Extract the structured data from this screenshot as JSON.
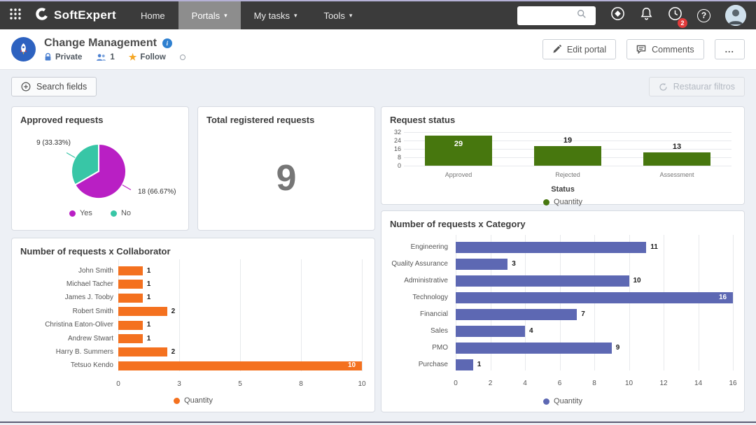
{
  "topnav": {
    "brand": "SoftExpert",
    "menu": [
      {
        "label": "Home",
        "active": false,
        "caret": false
      },
      {
        "label": "Portals",
        "active": true,
        "caret": true
      },
      {
        "label": "My tasks",
        "active": false,
        "caret": true
      },
      {
        "label": "Tools",
        "active": false,
        "caret": true
      }
    ],
    "search_value": "",
    "notifications_badge": "2"
  },
  "header": {
    "title": "Change Management",
    "private_label": "Private",
    "members_count": "1",
    "follow_label": "Follow",
    "edit_button": "Edit portal",
    "comments_button": "Comments",
    "more_button": "..."
  },
  "toolbar": {
    "search_fields": "Search fields",
    "restore_filters": "Restaurar filtros"
  },
  "total_card": {
    "title": "Total registered requests",
    "value": "9"
  },
  "icons": {
    "caret": "▾",
    "star": "★",
    "help": "?",
    "info": "i"
  },
  "chart_data": [
    {
      "id": "approved-requests",
      "type": "pie",
      "title": "Approved requests",
      "slices": [
        {
          "label": "Yes",
          "value": 18,
          "percent": 66.67,
          "callout": "18 (66.67%)",
          "color": "#b91fc4"
        },
        {
          "label": "No",
          "value": 9,
          "percent": 33.33,
          "callout": "9 (33.33%)",
          "color": "#38c6a6"
        }
      ],
      "legend_position": "bottom"
    },
    {
      "id": "request-status",
      "type": "bar",
      "title": "Request status",
      "categories": [
        "Approved",
        "Rejected",
        "Assessment"
      ],
      "values": [
        29,
        19,
        13
      ],
      "ylim": [
        0,
        32
      ],
      "yticks": [
        0,
        8,
        16,
        24,
        32
      ],
      "xlabel": "Status",
      "legend": "Quantity",
      "color": "#47770e",
      "grid": true
    },
    {
      "id": "requests-by-collaborator",
      "type": "hbar",
      "title": "Number of requests x Collaborator",
      "categories": [
        "John Smith",
        "Michael Tacher",
        "James J. Tooby",
        "Robert Smith",
        "Christina Eaton-Oliver",
        "Andrew Stwart",
        "Harry B. Summers",
        "Tetsuo Kendo"
      ],
      "values": [
        1,
        1,
        1,
        2,
        1,
        1,
        2,
        10
      ],
      "xlim": [
        0,
        10
      ],
      "xticks": [
        "0",
        "3",
        "5",
        "8",
        "10"
      ],
      "legend": "Quantity",
      "color": "#f4711f",
      "grid": true
    },
    {
      "id": "requests-by-category",
      "type": "hbar",
      "title": "Number of requests x Category",
      "categories": [
        "Engineering",
        "Quality Assurance",
        "Administrative",
        "Technology",
        "Financial",
        "Sales",
        "PMO",
        "Purchase"
      ],
      "values": [
        11,
        3,
        10,
        16,
        7,
        4,
        9,
        1
      ],
      "xlim": [
        0,
        16
      ],
      "xticks": [
        "0",
        "2",
        "4",
        "6",
        "8",
        "10",
        "12",
        "14",
        "16"
      ],
      "legend": "Quantity",
      "color": "#5d68b3",
      "grid": true
    }
  ]
}
